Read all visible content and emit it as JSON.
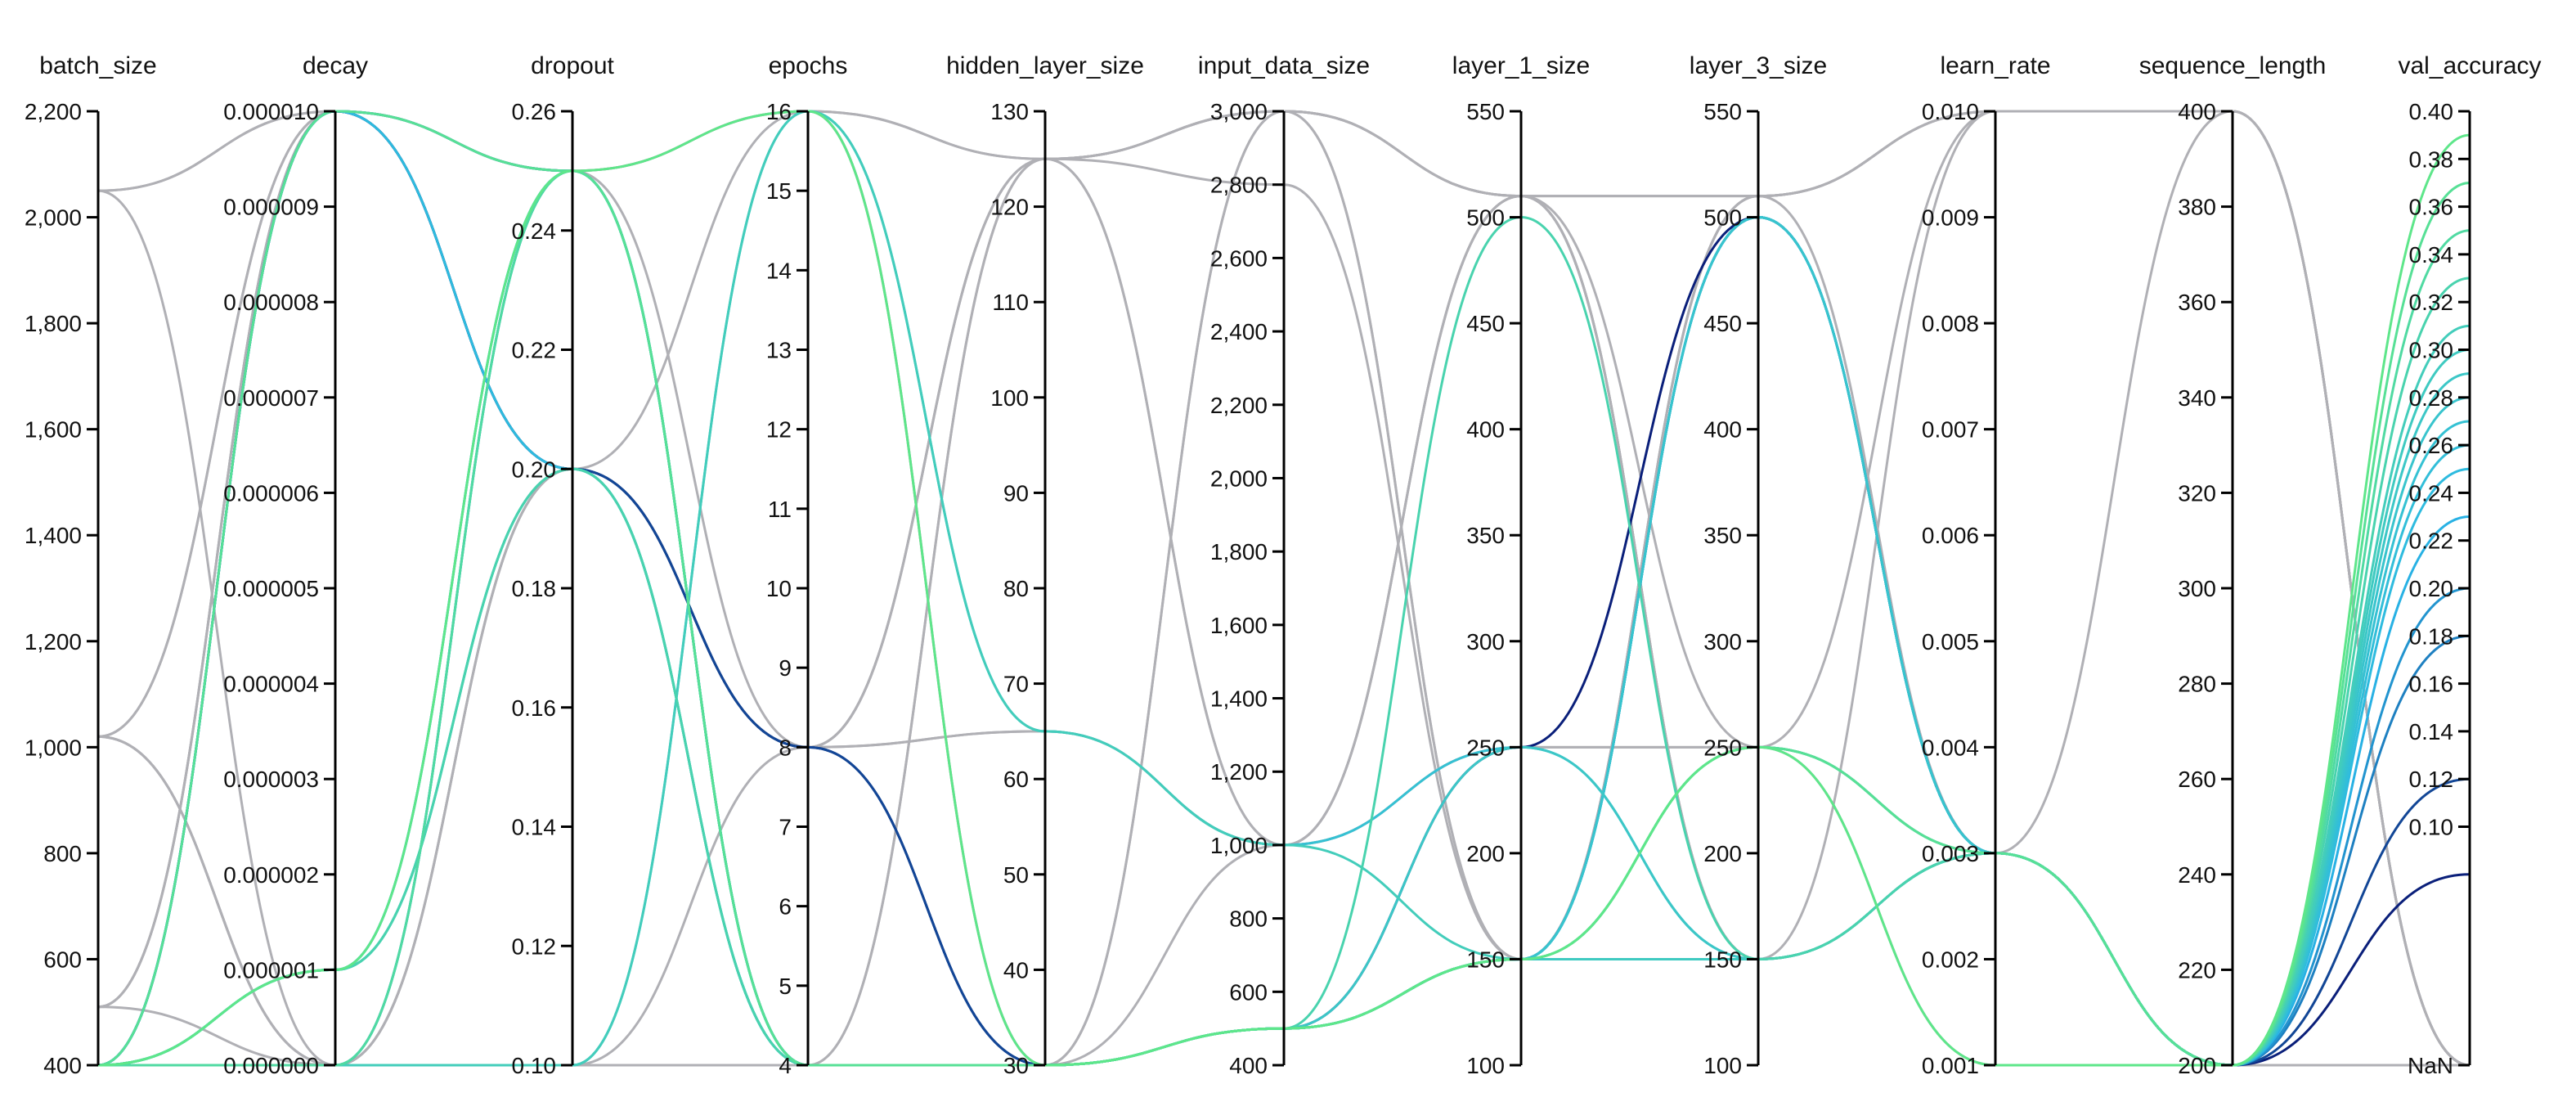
{
  "chart_data": {
    "type": "parallel-coordinates",
    "title": "",
    "axes": [
      {
        "name": "batch_size",
        "min": 400,
        "max": 2200,
        "ticks": [
          {
            "v": 400,
            "label": "400"
          },
          {
            "v": 600,
            "label": "600"
          },
          {
            "v": 800,
            "label": "800"
          },
          {
            "v": 1000,
            "label": "1,000"
          },
          {
            "v": 1200,
            "label": "1,200"
          },
          {
            "v": 1400,
            "label": "1,400"
          },
          {
            "v": 1600,
            "label": "1,600"
          },
          {
            "v": 1800,
            "label": "1,800"
          },
          {
            "v": 2000,
            "label": "2,000"
          },
          {
            "v": 2200,
            "label": "2,200"
          }
        ]
      },
      {
        "name": "decay",
        "min": 0,
        "max": 1e-05,
        "ticks": [
          {
            "v": 0,
            "label": "0.000000"
          },
          {
            "v": 1e-06,
            "label": "0.000001"
          },
          {
            "v": 2e-06,
            "label": "0.000002"
          },
          {
            "v": 3e-06,
            "label": "0.000003"
          },
          {
            "v": 4e-06,
            "label": "0.000004"
          },
          {
            "v": 5e-06,
            "label": "0.000005"
          },
          {
            "v": 6e-06,
            "label": "0.000006"
          },
          {
            "v": 7e-06,
            "label": "0.000007"
          },
          {
            "v": 8e-06,
            "label": "0.000008"
          },
          {
            "v": 9e-06,
            "label": "0.000009"
          },
          {
            "v": 1e-05,
            "label": "0.000010"
          }
        ]
      },
      {
        "name": "dropout",
        "min": 0.1,
        "max": 0.26,
        "ticks": [
          {
            "v": 0.1,
            "label": "0.10"
          },
          {
            "v": 0.12,
            "label": "0.12"
          },
          {
            "v": 0.14,
            "label": "0.14"
          },
          {
            "v": 0.16,
            "label": "0.16"
          },
          {
            "v": 0.18,
            "label": "0.18"
          },
          {
            "v": 0.2,
            "label": "0.20"
          },
          {
            "v": 0.22,
            "label": "0.22"
          },
          {
            "v": 0.24,
            "label": "0.24"
          },
          {
            "v": 0.26,
            "label": "0.26"
          }
        ]
      },
      {
        "name": "epochs",
        "min": 4,
        "max": 16,
        "ticks": [
          {
            "v": 4,
            "label": "4"
          },
          {
            "v": 5,
            "label": "5"
          },
          {
            "v": 6,
            "label": "6"
          },
          {
            "v": 7,
            "label": "7"
          },
          {
            "v": 8,
            "label": "8"
          },
          {
            "v": 9,
            "label": "9"
          },
          {
            "v": 10,
            "label": "10"
          },
          {
            "v": 11,
            "label": "11"
          },
          {
            "v": 12,
            "label": "12"
          },
          {
            "v": 13,
            "label": "13"
          },
          {
            "v": 14,
            "label": "14"
          },
          {
            "v": 15,
            "label": "15"
          },
          {
            "v": 16,
            "label": "16"
          }
        ]
      },
      {
        "name": "hidden_layer_size",
        "min": 30,
        "max": 130,
        "ticks": [
          {
            "v": 30,
            "label": "30"
          },
          {
            "v": 40,
            "label": "40"
          },
          {
            "v": 50,
            "label": "50"
          },
          {
            "v": 60,
            "label": "60"
          },
          {
            "v": 70,
            "label": "70"
          },
          {
            "v": 80,
            "label": "80"
          },
          {
            "v": 90,
            "label": "90"
          },
          {
            "v": 100,
            "label": "100"
          },
          {
            "v": 110,
            "label": "110"
          },
          {
            "v": 120,
            "label": "120"
          },
          {
            "v": 130,
            "label": "130"
          }
        ]
      },
      {
        "name": "input_data_size",
        "min": 400,
        "max": 3000,
        "ticks": [
          {
            "v": 400,
            "label": "400"
          },
          {
            "v": 600,
            "label": "600"
          },
          {
            "v": 800,
            "label": "800"
          },
          {
            "v": 1000,
            "label": "1,000"
          },
          {
            "v": 1200,
            "label": "1,200"
          },
          {
            "v": 1400,
            "label": "1,400"
          },
          {
            "v": 1600,
            "label": "1,600"
          },
          {
            "v": 1800,
            "label": "1,800"
          },
          {
            "v": 2000,
            "label": "2,000"
          },
          {
            "v": 2200,
            "label": "2,200"
          },
          {
            "v": 2400,
            "label": "2,400"
          },
          {
            "v": 2600,
            "label": "2,600"
          },
          {
            "v": 2800,
            "label": "2,800"
          },
          {
            "v": 3000,
            "label": "3,000"
          }
        ]
      },
      {
        "name": "layer_1_size",
        "min": 100,
        "max": 550,
        "ticks": [
          {
            "v": 100,
            "label": "100"
          },
          {
            "v": 150,
            "label": "150"
          },
          {
            "v": 200,
            "label": "200"
          },
          {
            "v": 250,
            "label": "250"
          },
          {
            "v": 300,
            "label": "300"
          },
          {
            "v": 350,
            "label": "350"
          },
          {
            "v": 400,
            "label": "400"
          },
          {
            "v": 450,
            "label": "450"
          },
          {
            "v": 500,
            "label": "500"
          },
          {
            "v": 550,
            "label": "550"
          }
        ]
      },
      {
        "name": "layer_3_size",
        "min": 100,
        "max": 550,
        "ticks": [
          {
            "v": 100,
            "label": "100"
          },
          {
            "v": 150,
            "label": "150"
          },
          {
            "v": 200,
            "label": "200"
          },
          {
            "v": 250,
            "label": "250"
          },
          {
            "v": 300,
            "label": "300"
          },
          {
            "v": 350,
            "label": "350"
          },
          {
            "v": 400,
            "label": "400"
          },
          {
            "v": 450,
            "label": "450"
          },
          {
            "v": 500,
            "label": "500"
          },
          {
            "v": 550,
            "label": "550"
          }
        ]
      },
      {
        "name": "learn_rate",
        "min": 0.001,
        "max": 0.01,
        "ticks": [
          {
            "v": 0.001,
            "label": "0.001"
          },
          {
            "v": 0.002,
            "label": "0.002"
          },
          {
            "v": 0.003,
            "label": "0.003"
          },
          {
            "v": 0.004,
            "label": "0.004"
          },
          {
            "v": 0.005,
            "label": "0.005"
          },
          {
            "v": 0.006,
            "label": "0.006"
          },
          {
            "v": 0.007,
            "label": "0.007"
          },
          {
            "v": 0.008,
            "label": "0.008"
          },
          {
            "v": 0.009,
            "label": "0.009"
          },
          {
            "v": 0.01,
            "label": "0.010"
          }
        ]
      },
      {
        "name": "sequence_length",
        "min": 200,
        "max": 400,
        "ticks": [
          {
            "v": 200,
            "label": "200"
          },
          {
            "v": 220,
            "label": "220"
          },
          {
            "v": 240,
            "label": "240"
          },
          {
            "v": 260,
            "label": "260"
          },
          {
            "v": 280,
            "label": "280"
          },
          {
            "v": 300,
            "label": "300"
          },
          {
            "v": 320,
            "label": "320"
          },
          {
            "v": 340,
            "label": "340"
          },
          {
            "v": 360,
            "label": "360"
          },
          {
            "v": 380,
            "label": "380"
          },
          {
            "v": 400,
            "label": "400"
          }
        ]
      },
      {
        "name": "val_accuracy",
        "min": 0.0,
        "max": 0.4,
        "nan_label": "NaN",
        "ticks": [
          {
            "v": 0.1,
            "label": "0.10"
          },
          {
            "v": 0.12,
            "label": "0.12"
          },
          {
            "v": 0.14,
            "label": "0.14"
          },
          {
            "v": 0.16,
            "label": "0.16"
          },
          {
            "v": 0.18,
            "label": "0.18"
          },
          {
            "v": 0.2,
            "label": "0.20"
          },
          {
            "v": 0.22,
            "label": "0.22"
          },
          {
            "v": 0.24,
            "label": "0.24"
          },
          {
            "v": 0.26,
            "label": "0.26"
          },
          {
            "v": 0.28,
            "label": "0.28"
          },
          {
            "v": 0.3,
            "label": "0.30"
          },
          {
            "v": 0.32,
            "label": "0.32"
          },
          {
            "v": 0.34,
            "label": "0.34"
          },
          {
            "v": 0.36,
            "label": "0.36"
          },
          {
            "v": 0.38,
            "label": "0.38"
          },
          {
            "v": 0.4,
            "label": "0.40"
          }
        ]
      }
    ],
    "color_scale": {
      "by": "val_accuracy",
      "low": "#0a1f7a",
      "mid": "#29b6e8",
      "high": "#5ee68a",
      "null_color": "#b0b0b5"
    },
    "runs": [
      {
        "values": [
          400,
          1e-06,
          0.25,
          16,
          30,
          500,
          150,
          250,
          0.001,
          200,
          0.39
        ]
      },
      {
        "values": [
          400,
          1e-05,
          0.25,
          4,
          30,
          500,
          150,
          250,
          0.003,
          200,
          0.37
        ]
      },
      {
        "values": [
          400,
          0.0,
          0.25,
          4,
          30,
          500,
          150,
          250,
          0.003,
          200,
          0.35
        ]
      },
      {
        "values": [
          400,
          1e-06,
          0.2,
          4,
          30,
          500,
          500,
          150,
          0.003,
          200,
          0.33
        ]
      },
      {
        "values": [
          400,
          0.0,
          0.1,
          16,
          65,
          1000,
          150,
          250,
          0.003,
          200,
          0.31
        ]
      },
      {
        "values": [
          400,
          1e-06,
          0.2,
          4,
          30,
          500,
          150,
          150,
          0.003,
          200,
          0.3
        ]
      },
      {
        "values": [
          400,
          0.0,
          0.25,
          4,
          30,
          500,
          250,
          150,
          0.003,
          200,
          0.29
        ]
      },
      {
        "values": [
          400,
          1e-06,
          0.2,
          4,
          30,
          500,
          150,
          500,
          0.003,
          200,
          0.28
        ]
      },
      {
        "values": [
          400,
          0.0,
          0.1,
          16,
          65,
          1000,
          250,
          150,
          0.003,
          200,
          0.27
        ]
      },
      {
        "values": [
          400,
          1e-06,
          0.25,
          4,
          30,
          500,
          150,
          500,
          0.003,
          200,
          0.26
        ]
      },
      {
        "values": [
          400,
          1e-05,
          0.2,
          4,
          30,
          500,
          150,
          500,
          0.003,
          200,
          0.25
        ]
      },
      {
        "values": [
          400,
          1e-06,
          0.25,
          4,
          30,
          500,
          150,
          500,
          0.003,
          200,
          0.23
        ]
      },
      {
        "values": [
          400,
          1e-05,
          0.25,
          4,
          30,
          500,
          150,
          500,
          0.003,
          200,
          0.2
        ]
      },
      {
        "values": [
          400,
          0.0,
          0.25,
          4,
          30,
          500,
          150,
          500,
          0.003,
          200,
          0.18
        ]
      },
      {
        "values": [
          400,
          1e-05,
          0.2,
          8,
          30,
          500,
          150,
          500,
          0.003,
          200,
          0.12
        ]
      },
      {
        "values": [
          400,
          1e-05,
          0.2,
          8,
          30,
          500,
          250,
          500,
          0.003,
          200,
          0.08
        ]
      },
      {
        "values": [
          2050,
          0.0,
          0.1,
          4,
          30,
          3000,
          510,
          510,
          0.01,
          400,
          null
        ]
      },
      {
        "values": [
          2050,
          1e-05,
          0.25,
          8,
          125,
          3000,
          510,
          510,
          0.01,
          400,
          null
        ]
      },
      {
        "values": [
          1020,
          1e-05,
          0.25,
          16,
          125,
          3000,
          510,
          150,
          0.003,
          200,
          null
        ]
      },
      {
        "values": [
          1020,
          0.0,
          0.2,
          8,
          65,
          1000,
          510,
          150,
          0.003,
          200,
          null
        ]
      },
      {
        "values": [
          510,
          1e-05,
          0.25,
          16,
          125,
          2800,
          150,
          510,
          0.01,
          400,
          null
        ]
      },
      {
        "values": [
          510,
          0.0,
          0.1,
          8,
          125,
          1000,
          250,
          250,
          0.001,
          200,
          null
        ]
      },
      {
        "values": [
          1020,
          1e-05,
          0.2,
          4,
          125,
          3000,
          510,
          150,
          0.003,
          400,
          null
        ]
      },
      {
        "values": [
          510,
          1e-05,
          0.2,
          8,
          65,
          1000,
          250,
          250,
          0.003,
          200,
          null
        ]
      },
      {
        "values": [
          2050,
          1e-05,
          0.25,
          16,
          30,
          3000,
          150,
          510,
          0.01,
          400,
          null
        ]
      },
      {
        "values": [
          1020,
          0.0,
          0.2,
          8,
          125,
          1000,
          510,
          150,
          0.01,
          400,
          null
        ]
      },
      {
        "values": [
          510,
          1e-05,
          0.25,
          4,
          125,
          3000,
          150,
          510,
          0.003,
          200,
          null
        ]
      },
      {
        "values": [
          1020,
          0.0,
          0.2,
          16,
          30,
          1000,
          510,
          250,
          0.01,
          400,
          null
        ]
      }
    ]
  }
}
